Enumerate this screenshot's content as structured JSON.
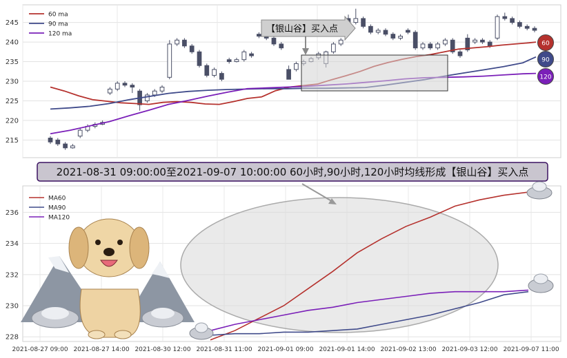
{
  "colors": {
    "ma60": "#b5312d",
    "ma90": "#3f4a8a",
    "ma120": "#7a1fb8",
    "candle": "#4a4f66"
  },
  "signal": {
    "label": "【银山谷】买入点",
    "banner": "2021-08-31 09:00:00至2021-09-07 10:00:00 60小时,90小时,120小时均线形成【银山谷】买入点"
  },
  "badges": [
    "60",
    "90",
    "120"
  ],
  "chart_data": [
    {
      "type": "candlestick",
      "legend_placement": "top-left",
      "ylim": [
        210.5,
        249.5
      ],
      "yticks": [
        215,
        220,
        225,
        230,
        235,
        240,
        245
      ],
      "grid": true,
      "candles": [
        [
          215.5,
          214.5,
          216,
          214
        ],
        [
          215,
          214,
          215.5,
          213.5
        ],
        [
          214,
          213,
          214.5,
          212.5
        ],
        [
          213,
          213.5,
          214,
          212.8
        ],
        [
          216,
          217.5,
          218,
          215.5
        ],
        [
          217.5,
          218.5,
          219,
          217
        ],
        [
          218.5,
          219,
          219.5,
          218
        ],
        [
          219,
          219.5,
          220,
          218.8
        ],
        [
          227,
          228,
          228.5,
          226.5
        ],
        [
          228,
          229.5,
          230,
          227.5
        ],
        [
          229.5,
          229,
          230,
          228.5
        ],
        [
          229,
          228.5,
          229.5,
          227
        ],
        [
          227.5,
          224,
          228,
          222.5
        ],
        [
          225,
          226.5,
          227,
          224.5
        ],
        [
          226.5,
          227.5,
          228,
          226
        ],
        [
          227.5,
          228.5,
          229,
          227
        ],
        [
          231,
          239.5,
          240.5,
          230.5
        ],
        [
          239.5,
          240.5,
          241,
          239
        ],
        [
          240.5,
          239,
          241,
          238.5
        ],
        [
          239,
          237.5,
          239.5,
          237
        ],
        [
          237.5,
          234,
          238,
          233.5
        ],
        [
          234,
          231.5,
          234.5,
          231
        ],
        [
          231.5,
          233,
          233.5,
          231
        ],
        [
          232,
          230.5,
          232.5,
          230
        ],
        [
          235.5,
          235,
          236,
          234.5
        ],
        [
          235,
          235.5,
          236,
          234.8
        ],
        [
          235.5,
          237.5,
          238,
          235
        ],
        [
          237,
          236.5,
          237.5,
          236
        ],
        [
          242,
          241.5,
          242.5,
          241
        ],
        [
          241.5,
          241,
          242,
          240.5
        ],
        [
          241,
          239.5,
          241.5,
          239
        ],
        [
          239.5,
          238.5,
          240,
          238
        ],
        [
          233,
          230.5,
          234,
          231
        ],
        [
          233,
          234.5,
          235,
          232.5
        ],
        [
          234.5,
          235,
          235.5,
          234
        ],
        [
          235,
          235.8,
          236.2,
          234.8
        ],
        [
          236,
          237,
          237.5,
          235.5
        ],
        [
          234.5,
          237.5,
          237.8,
          233.5
        ],
        [
          237.5,
          239.5,
          240,
          237
        ],
        [
          239.5,
          240.5,
          241,
          239
        ],
        [
          246,
          245,
          247,
          244.5
        ],
        [
          245,
          246,
          248.5,
          244.5
        ],
        [
          246,
          244,
          246.5,
          243.5
        ],
        [
          244,
          242.5,
          244.5,
          242
        ],
        [
          242.5,
          243,
          243.5,
          242
        ],
        [
          243,
          242,
          243.5,
          241.5
        ],
        [
          242,
          241,
          242.5,
          240.5
        ],
        [
          241,
          241.5,
          242,
          240.5
        ],
        [
          243,
          242.5,
          243.5,
          242
        ],
        [
          242.5,
          238.5,
          243,
          238
        ],
        [
          238.5,
          239.5,
          240,
          238
        ],
        [
          239.5,
          238.5,
          240,
          238
        ],
        [
          238.5,
          239.5,
          240,
          238
        ],
        [
          239.5,
          240.5,
          241,
          239
        ],
        [
          240.5,
          237.5,
          241,
          237
        ],
        [
          237.5,
          236.5,
          238,
          236
        ],
        [
          241,
          238,
          242,
          237.5
        ],
        [
          240,
          240.5,
          241,
          239.5
        ],
        [
          240.5,
          240,
          241,
          239.5
        ],
        [
          240,
          239,
          240.5,
          238.5
        ],
        [
          241,
          246.5,
          247,
          240.5
        ],
        [
          246.5,
          246,
          247.5,
          245.5
        ],
        [
          246,
          245,
          246.5,
          244.5
        ],
        [
          245,
          244,
          245.5,
          243.5
        ],
        [
          244,
          243.5,
          244.5,
          243
        ],
        [
          243.5,
          243,
          244,
          242.5
        ]
      ],
      "series": [
        {
          "name": "60 ma",
          "color_key": "ma60",
          "values": [
            [
              0,
              228.5
            ],
            [
              6,
              227.5
            ],
            [
              12,
              226.3
            ],
            [
              18,
              225.3
            ],
            [
              24,
              224.9
            ],
            [
              30,
              224.5
            ],
            [
              36,
              224.3
            ],
            [
              42,
              224.1
            ],
            [
              48,
              224.6
            ],
            [
              54,
              224.8
            ],
            [
              60,
              224.6
            ],
            [
              66,
              224.2
            ],
            [
              72,
              224.1
            ],
            [
              78,
              224.8
            ],
            [
              84,
              225.6
            ],
            [
              90,
              226
            ],
            [
              96,
              227.6
            ],
            [
              102,
              228.5
            ],
            [
              108,
              228.9
            ],
            [
              114,
              229.3
            ],
            [
              120,
              230.4
            ],
            [
              126,
              231.4
            ],
            [
              132,
              232.5
            ],
            [
              138,
              233.8
            ],
            [
              144,
              234.8
            ],
            [
              150,
              235.6
            ],
            [
              156,
              236.3
            ],
            [
              162,
              236.8
            ],
            [
              168,
              237.5
            ],
            [
              174,
              238.2
            ],
            [
              180,
              238.5
            ],
            [
              186,
              238.8
            ],
            [
              192,
              239.2
            ],
            [
              198,
              239.5
            ],
            [
              204,
              239.8
            ],
            [
              207,
              240
            ]
          ]
        },
        {
          "name": "90 ma",
          "color_key": "ma90",
          "values": [
            [
              0,
              222.9
            ],
            [
              12,
              223.2
            ],
            [
              24,
              223.6
            ],
            [
              36,
              224.3
            ],
            [
              48,
              225.3
            ],
            [
              60,
              226.1
            ],
            [
              72,
              226.9
            ],
            [
              84,
              227.4
            ],
            [
              96,
              227.7
            ],
            [
              108,
              227.9
            ],
            [
              120,
              228
            ],
            [
              132,
              228.1
            ],
            [
              144,
              228.1
            ],
            [
              156,
              228.2
            ],
            [
              168,
              228.2
            ],
            [
              180,
              228.3
            ],
            [
              192,
              228.4
            ],
            [
              204,
              229
            ],
            [
              216,
              229.7
            ],
            [
              228,
              230.4
            ],
            [
              240,
              231.3
            ],
            [
              252,
              232.1
            ],
            [
              264,
              232.9
            ],
            [
              276,
              233.7
            ],
            [
              288,
              234.7
            ],
            [
              296,
              236.2
            ]
          ]
        },
        {
          "name": "120 ma",
          "color_key": "ma120",
          "values": [
            [
              0,
              216.6
            ],
            [
              12,
              217.5
            ],
            [
              24,
              218.6
            ],
            [
              36,
              219.7
            ],
            [
              48,
              221.2
            ],
            [
              60,
              222.6
            ],
            [
              72,
              224.1
            ],
            [
              84,
              225.1
            ],
            [
              96,
              226.2
            ],
            [
              108,
              227.2
            ],
            [
              120,
              228.1
            ],
            [
              132,
              228.3
            ],
            [
              144,
              228.5
            ],
            [
              156,
              228.7
            ],
            [
              168,
              229
            ],
            [
              180,
              229.3
            ],
            [
              192,
              229.7
            ],
            [
              204,
              230.1
            ],
            [
              216,
              230.6
            ],
            [
              228,
              230.9
            ],
            [
              240,
              231
            ],
            [
              252,
              231.1
            ],
            [
              264,
              231.3
            ],
            [
              276,
              231.6
            ],
            [
              288,
              231.9
            ],
            [
              296,
              232
            ]
          ]
        }
      ]
    },
    {
      "type": "line",
      "legend_placement": "top-left",
      "ylim": [
        227.7,
        237.7
      ],
      "yticks": [
        228,
        230,
        232,
        234,
        236
      ],
      "x_labels": [
        "2021-08-27 09:00",
        "2021-08-27 14:00",
        "2021-08-30 12:00",
        "2021-08-31 11:00",
        "2021-09-01 09:00",
        "2021-09-01 14:00",
        "2021-09-02 13:00",
        "2021-09-03 12:00",
        "2021-09-07 11:00"
      ],
      "grid": true,
      "series": [
        {
          "name": "MA60",
          "color_key": "ma60",
          "values": [
            [
              0,
              227.8
            ],
            [
              1,
              228.4
            ],
            [
              2,
              229.2
            ],
            [
              3,
              230
            ],
            [
              4,
              231.1
            ],
            [
              5,
              232.2
            ],
            [
              6,
              233.4
            ],
            [
              7,
              234.3
            ],
            [
              8,
              235.1
            ],
            [
              9,
              235.7
            ],
            [
              10,
              236.4
            ],
            [
              11,
              236.8
            ],
            [
              12,
              237.1
            ],
            [
              13,
              237.3
            ]
          ]
        },
        {
          "name": "MA90",
          "color_key": "ma90",
          "values": [
            [
              0,
              228.1
            ],
            [
              1,
              228.2
            ],
            [
              2,
              228.2
            ],
            [
              3,
              228.3
            ],
            [
              4,
              228.3
            ],
            [
              5,
              228.4
            ],
            [
              6,
              228.5
            ],
            [
              7,
              228.8
            ],
            [
              8,
              229.1
            ],
            [
              9,
              229.4
            ],
            [
              10,
              229.8
            ],
            [
              11,
              230.2
            ],
            [
              12,
              230.7
            ],
            [
              13,
              230.9
            ]
          ]
        },
        {
          "name": "MA120",
          "color_key": "ma120",
          "values": [
            [
              0,
              228.4
            ],
            [
              1,
              228.8
            ],
            [
              2,
              229.1
            ],
            [
              3,
              229.4
            ],
            [
              4,
              229.7
            ],
            [
              5,
              229.9
            ],
            [
              6,
              230.2
            ],
            [
              7,
              230.4
            ],
            [
              8,
              230.6
            ],
            [
              9,
              230.8
            ],
            [
              10,
              230.9
            ],
            [
              11,
              230.9
            ],
            [
              12,
              230.9
            ],
            [
              13,
              231
            ]
          ]
        }
      ]
    }
  ]
}
